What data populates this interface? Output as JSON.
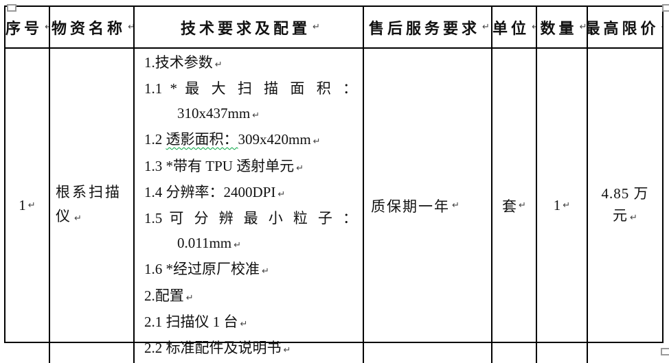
{
  "marks": {
    "paragraph": "↵"
  },
  "colors": {
    "border": "#000000",
    "text": "#111111",
    "wavy_underline_green": "#00a33e",
    "handle_gray": "#999999"
  },
  "table": {
    "headers": [
      {
        "label": "序号"
      },
      {
        "label": "物资名称"
      },
      {
        "label": "技术要求及配置"
      },
      {
        "label": "售后服务要求"
      },
      {
        "label": "单位"
      },
      {
        "label": "数量"
      },
      {
        "label": "最高限价"
      }
    ],
    "row": {
      "serial": "1",
      "item_name": "根系扫描仪",
      "after_sales": "质保期一年",
      "unit": "套",
      "quantity": "1",
      "max_price": "4.85 万元",
      "tech_lines": [
        {
          "segments": [
            {
              "t": "1.技术参数"
            }
          ],
          "mark": true
        },
        {
          "segments": [
            {
              "t": "1.1 * 最 大 扫 描 面 积 ："
            }
          ],
          "cls": "j"
        },
        {
          "segments": [
            {
              "t": "310x437mm"
            }
          ],
          "cls": "ind",
          "mark": true
        },
        {
          "segments": [
            {
              "t": "1.2 "
            },
            {
              "t": "透影面积：",
              "wavy": true
            },
            {
              "t": "309x420mm"
            }
          ],
          "mark": true
        },
        {
          "segments": [
            {
              "t": "1.3 *带有 TPU 透射单元"
            }
          ],
          "mark": true
        },
        {
          "segments": [
            {
              "t": "1.4 分辨率：2400DPI"
            }
          ],
          "mark": true
        },
        {
          "segments": [
            {
              "t": "1.5 可 分 辨 最 小 粒 子 ："
            }
          ],
          "cls": "j"
        },
        {
          "segments": [
            {
              "t": "0.011mm"
            }
          ],
          "cls": "ind",
          "mark": true
        },
        {
          "segments": [
            {
              "t": "1.6 *经过原厂校准"
            }
          ],
          "mark": true
        },
        {
          "segments": [
            {
              "t": "2.配置"
            }
          ],
          "mark": true
        },
        {
          "segments": [
            {
              "t": "2.1 扫描仪 1 台"
            }
          ],
          "mark": true
        },
        {
          "segments": [
            {
              "t": "2.2 标准配件及说明书"
            }
          ],
          "mark": true
        }
      ]
    }
  }
}
